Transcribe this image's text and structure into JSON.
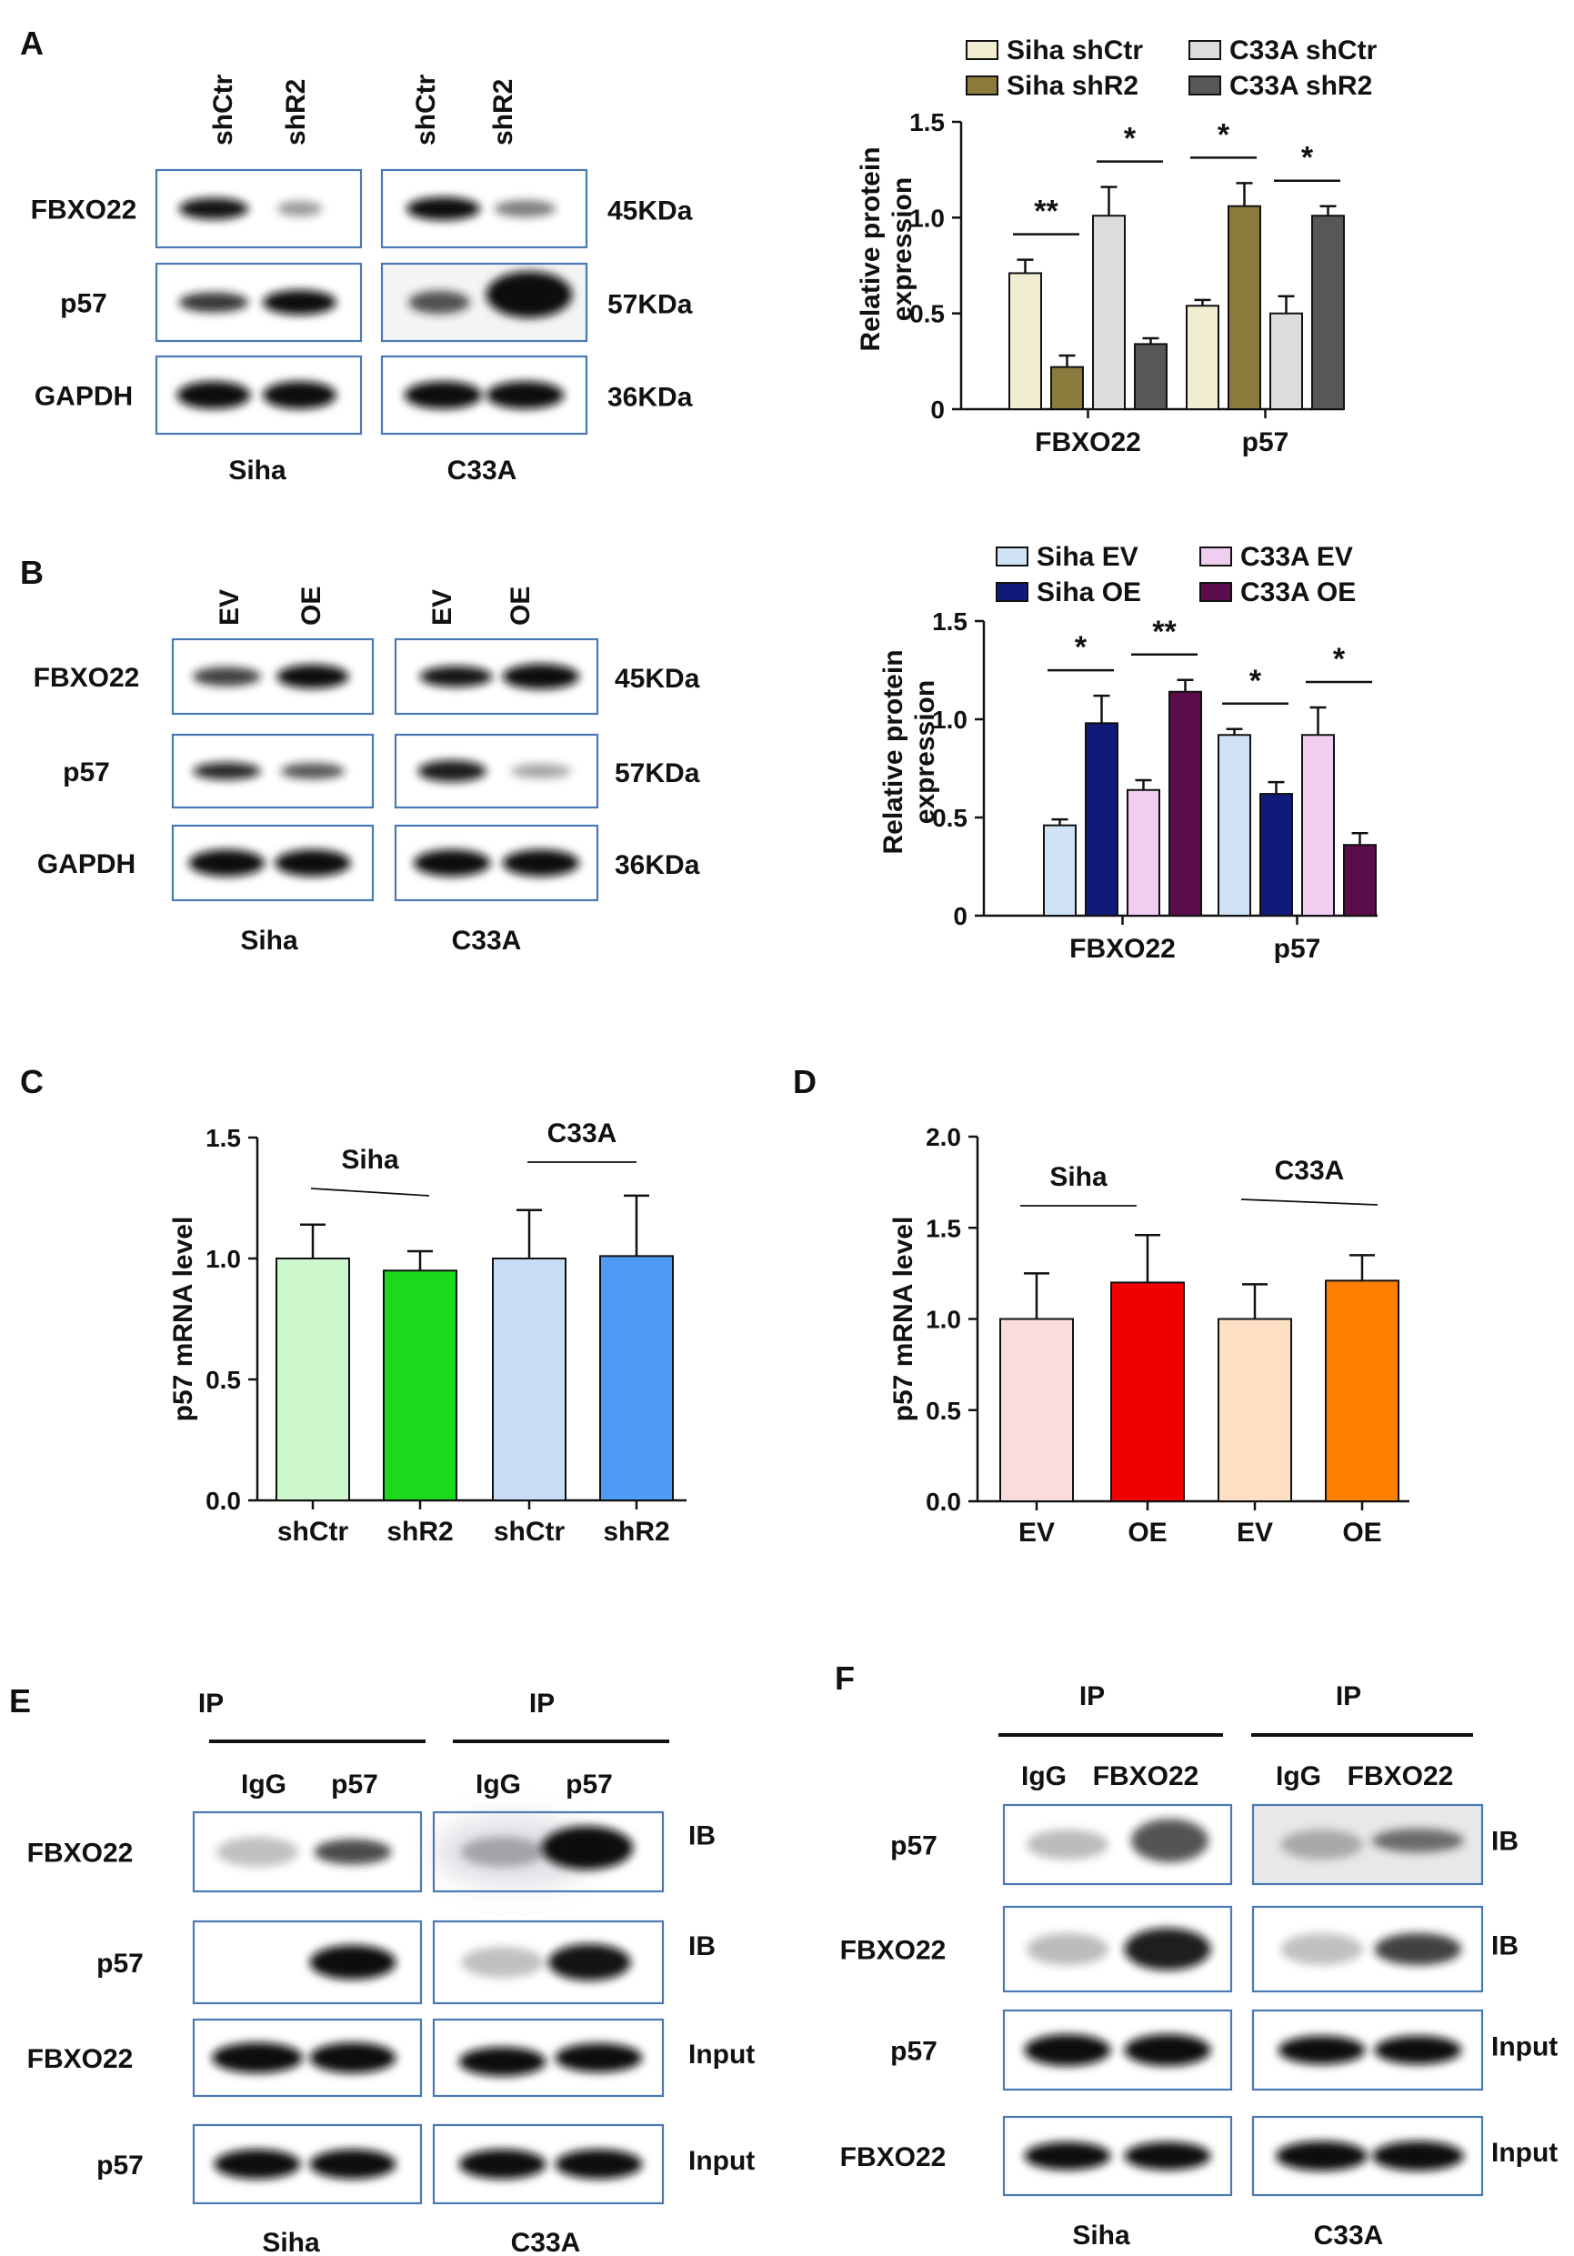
{
  "panels": {
    "A": {
      "letter": "A",
      "blot": {
        "groups": [
          {
            "cell": "Siha",
            "lanes": [
              "shCtr",
              "shR2"
            ]
          },
          {
            "cell": "C33A",
            "lanes": [
              "shCtr",
              "shR2"
            ]
          }
        ],
        "rows": [
          {
            "label": "FBXO22",
            "size": "45KDa"
          },
          {
            "label": "p57",
            "size": "57KDa"
          },
          {
            "label": "GAPDH",
            "size": "36KDa"
          }
        ]
      }
    },
    "B": {
      "letter": "B",
      "blot": {
        "groups": [
          {
            "cell": "Siha",
            "lanes": [
              "EV",
              "OE"
            ]
          },
          {
            "cell": "C33A",
            "lanes": [
              "EV",
              "OE"
            ]
          }
        ],
        "rows": [
          {
            "label": "FBXO22",
            "size": "45KDa"
          },
          {
            "label": "p57",
            "size": "57KDa"
          },
          {
            "label": "GAPDH",
            "size": "36KDa"
          }
        ]
      }
    },
    "C": {
      "letter": "C"
    },
    "D": {
      "letter": "D"
    },
    "E": {
      "letter": "E",
      "blot": {
        "groups": [
          {
            "cell": "Siha",
            "header": "IP",
            "lanes": [
              "IgG",
              "p57"
            ]
          },
          {
            "cell": "C33A",
            "header": "IP",
            "lanes": [
              "IgG",
              "p57"
            ]
          }
        ],
        "rows": [
          {
            "label": "FBXO22",
            "tag": "IB"
          },
          {
            "label": "p57",
            "tag": "IB"
          },
          {
            "label": "FBXO22",
            "tag": "Input"
          },
          {
            "label": "p57",
            "tag": "Input"
          }
        ]
      }
    },
    "F": {
      "letter": "F",
      "blot": {
        "groups": [
          {
            "cell": "Siha",
            "header": "IP",
            "lanes": [
              "IgG",
              "FBXO22"
            ]
          },
          {
            "cell": "C33A",
            "header": "IP",
            "lanes": [
              "IgG",
              "FBXO22"
            ]
          }
        ],
        "rows": [
          {
            "label": "p57",
            "tag": "IB"
          },
          {
            "label": "FBXO22",
            "tag": "IB"
          },
          {
            "label": "p57",
            "tag": "Input"
          },
          {
            "label": "FBXO22",
            "tag": "Input"
          }
        ]
      }
    }
  },
  "chart_data": [
    {
      "id": "A",
      "type": "bar",
      "ylabel": "Relative protein expression",
      "ylim": [
        0,
        1.5
      ],
      "yticks": [
        "0",
        "0.5",
        "1.0",
        "1.5"
      ],
      "categories": [
        "FBXO22",
        "p57"
      ],
      "legend_position": "top",
      "series": [
        {
          "name": "Siha shCtr",
          "color": "#f1edd3",
          "values": [
            0.71,
            0.54
          ],
          "errors": [
            0.07,
            0.03
          ]
        },
        {
          "name": "Siha shR2",
          "color": "#8a7b3d",
          "values": [
            0.22,
            1.06
          ],
          "errors": [
            0.06,
            0.12
          ]
        },
        {
          "name": "C33A shCtr",
          "color": "#dcdcdc",
          "values": [
            1.01,
            0.5
          ],
          "errors": [
            0.15,
            0.09
          ]
        },
        {
          "name": "C33A shR2",
          "color": "#575757",
          "values": [
            0.34,
            1.01
          ],
          "errors": [
            0.03,
            0.05
          ]
        }
      ],
      "significance": [
        {
          "category": "FBXO22",
          "pair": [
            0,
            1
          ],
          "label": "**"
        },
        {
          "category": "FBXO22",
          "pair": [
            2,
            3
          ],
          "label": "*"
        },
        {
          "category": "p57",
          "pair": [
            0,
            1
          ],
          "label": "*"
        },
        {
          "category": "p57",
          "pair": [
            2,
            3
          ],
          "label": "*"
        }
      ]
    },
    {
      "id": "B",
      "type": "bar",
      "ylabel": "Relative protein expression",
      "ylim": [
        0,
        1.5
      ],
      "yticks": [
        "0",
        "0.5",
        "1.0",
        "1.5"
      ],
      "categories": [
        "FBXO22",
        "p57"
      ],
      "legend_position": "top",
      "series": [
        {
          "name": "Siha EV",
          "color": "#cfe3f5",
          "values": [
            0.46,
            0.92
          ],
          "errors": [
            0.03,
            0.03
          ]
        },
        {
          "name": "Siha OE",
          "color": "#101a78",
          "values": [
            0.98,
            0.62
          ],
          "errors": [
            0.14,
            0.06
          ]
        },
        {
          "name": "C33A EV",
          "color": "#f1cdef",
          "values": [
            0.64,
            0.92
          ],
          "errors": [
            0.05,
            0.14
          ]
        },
        {
          "name": "C33A OE",
          "color": "#5a0d4a",
          "values": [
            1.14,
            0.36
          ],
          "errors": [
            0.06,
            0.06
          ]
        }
      ],
      "significance": [
        {
          "category": "FBXO22",
          "pair": [
            0,
            1
          ],
          "label": "*"
        },
        {
          "category": "FBXO22",
          "pair": [
            2,
            3
          ],
          "label": "**"
        },
        {
          "category": "p57",
          "pair": [
            0,
            1
          ],
          "label": "*"
        },
        {
          "category": "p57",
          "pair": [
            2,
            3
          ],
          "label": "*"
        }
      ]
    },
    {
      "id": "C",
      "type": "bar",
      "ylabel": "p57 mRNA level",
      "ylim": [
        0,
        1.5
      ],
      "yticks": [
        "0.0",
        "0.5",
        "1.0",
        "1.5"
      ],
      "categories": [
        "shCtr",
        "shR2",
        "shCtr",
        "shR2"
      ],
      "colors": [
        "#cdf7cd",
        "#1bd91b",
        "#c7dcf5",
        "#4d9bf5"
      ],
      "values": [
        1.0,
        0.95,
        1.0,
        1.01
      ],
      "errors": [
        0.14,
        0.08,
        0.2,
        0.25
      ],
      "group_labels": [
        {
          "text": "Siha",
          "bars": [
            0,
            1
          ]
        },
        {
          "text": "C33A",
          "bars": [
            2,
            3
          ]
        }
      ]
    },
    {
      "id": "D",
      "type": "bar",
      "ylabel": "p57 mRNA level",
      "ylim": [
        0,
        2.0
      ],
      "yticks": [
        "0.0",
        "0.5",
        "1.0",
        "1.5",
        "2.0"
      ],
      "categories": [
        "EV",
        "OE",
        "EV",
        "OE"
      ],
      "colors": [
        "#fbdcdc",
        "#f00000",
        "#fde0c4",
        "#ff7f00"
      ],
      "values": [
        1.0,
        1.2,
        1.0,
        1.21
      ],
      "errors": [
        0.25,
        0.26,
        0.19,
        0.14
      ],
      "group_labels": [
        {
          "text": "Siha",
          "bars": [
            0,
            1
          ]
        },
        {
          "text": "C33A",
          "bars": [
            2,
            3
          ]
        }
      ]
    }
  ]
}
